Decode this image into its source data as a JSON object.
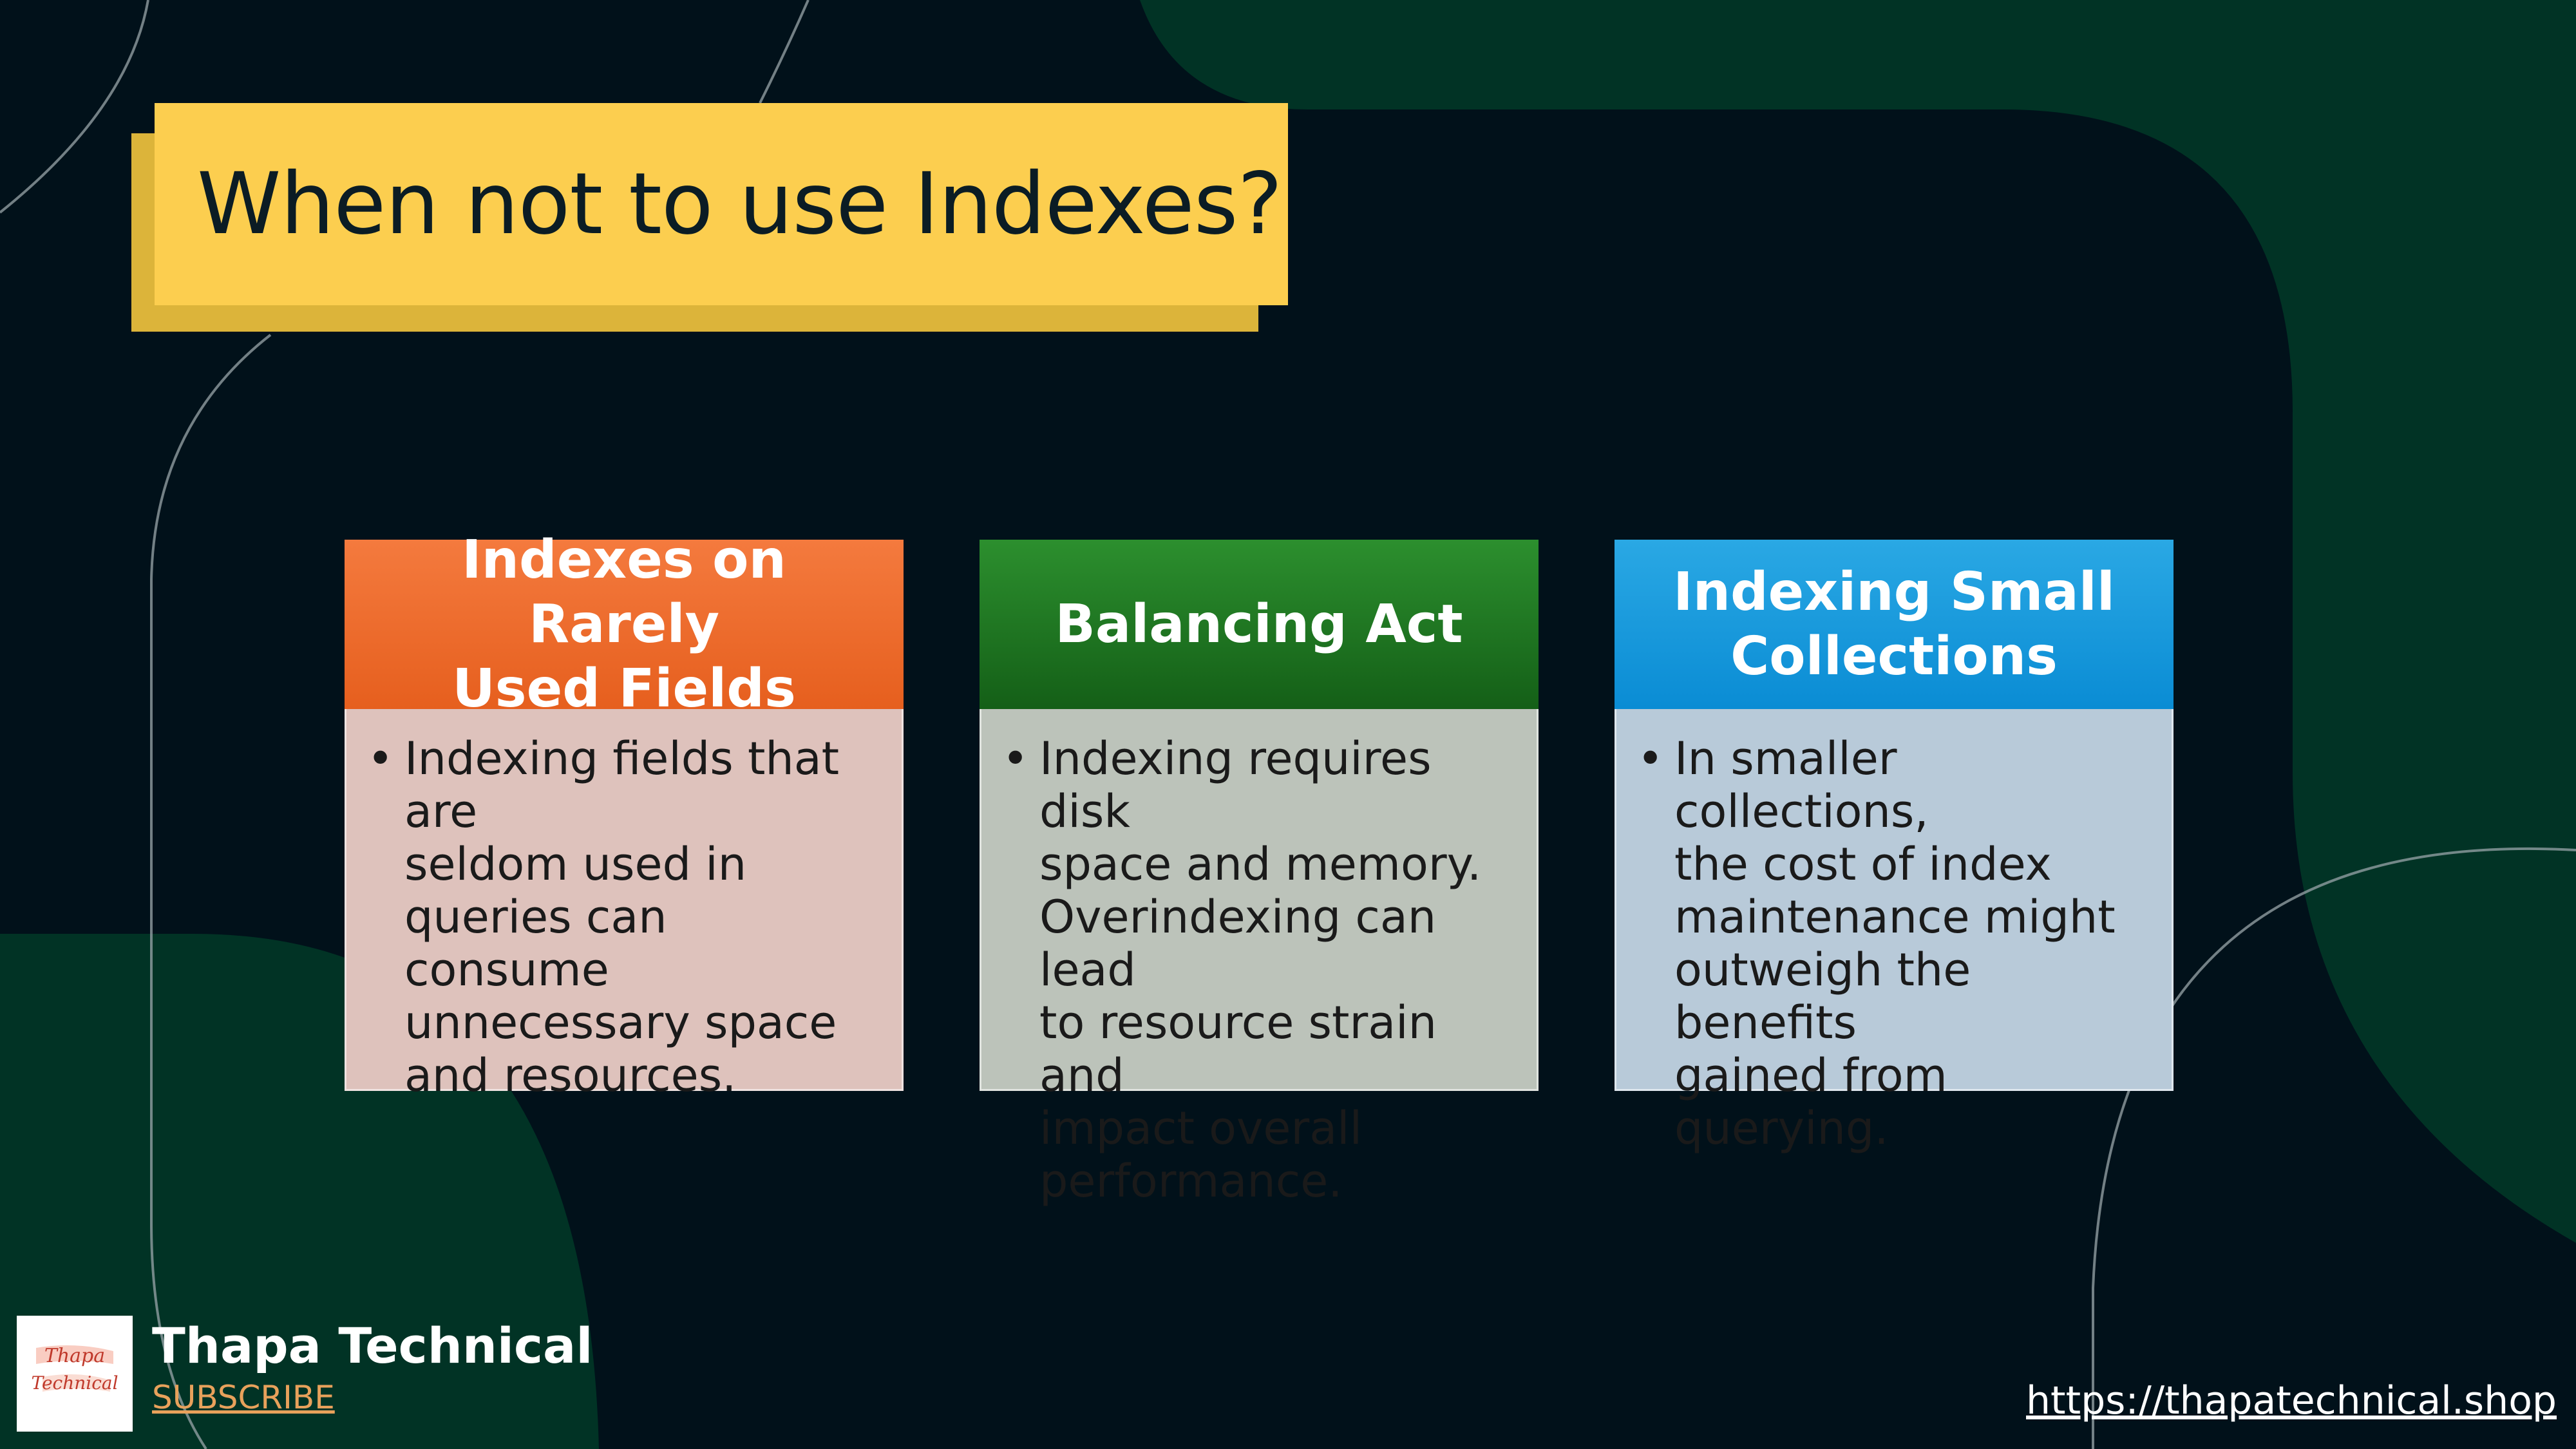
{
  "title": "When not to use Indexes?",
  "cards": [
    {
      "heading_lines": [
        "Indexes on Rarely",
        "Used Fields"
      ],
      "bullet": "Indexing fields that are seldom used in queries can consume unnecessary space and resources.",
      "bullet_lines": [
        "Indexing fields that are",
        "seldom used in",
        "queries can consume",
        "unnecessary space",
        "and resources."
      ]
    },
    {
      "heading_lines": [
        "Balancing Act"
      ],
      "bullet": "Indexing requires disk space and memory. Overindexing can lead to resource strain and impact overall performance.",
      "bullet_lines": [
        "Indexing requires disk",
        "space and memory.",
        "Overindexing can lead",
        "to resource strain and",
        "impact overall",
        "performance."
      ]
    },
    {
      "heading_lines": [
        "Indexing Small",
        "Collections"
      ],
      "bullet": "In smaller collections, the cost of index maintenance might outweigh the benefits gained from querying.",
      "bullet_lines": [
        "In smaller collections,",
        "the cost of index",
        "maintenance might",
        "outweigh the benefits",
        "gained from querying."
      ]
    }
  ],
  "branding": {
    "logo_lines": [
      "Thapa",
      "Technical"
    ],
    "name": "Thapa Technical",
    "subscribe": "SUBSCRIBE",
    "url": "https://thapatechnical.shop"
  },
  "colors": {
    "background": "#01111a",
    "green_shape": "#013325",
    "title_bg": "#fcce4f",
    "card1_header": "#e96a2a",
    "card2_header": "#1e7421",
    "card3_header": "#1a9add"
  }
}
